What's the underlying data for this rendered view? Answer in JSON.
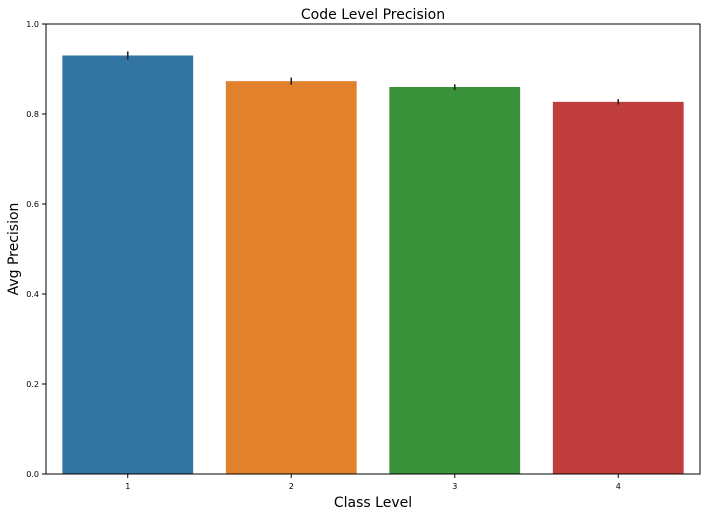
{
  "chart_data": {
    "type": "bar",
    "title": "Code Level Precision",
    "xlabel": "Class Level",
    "ylabel": "Avg Precision",
    "categories": [
      "1",
      "2",
      "3",
      "4"
    ],
    "values": [
      0.93,
      0.873,
      0.86,
      0.827
    ],
    "error_bars": [
      [
        0.921,
        0.939
      ],
      [
        0.865,
        0.881
      ],
      [
        0.853,
        0.866
      ],
      [
        0.821,
        0.833
      ]
    ],
    "colors": [
      "#3274a1",
      "#e1812c",
      "#3a923a",
      "#c03d3e"
    ],
    "ylim": [
      0.0,
      1.0
    ],
    "yticks": [
      "0.0",
      "0.2",
      "0.4",
      "0.6",
      "0.8",
      "1.0"
    ],
    "grid": false,
    "legend": false
  }
}
